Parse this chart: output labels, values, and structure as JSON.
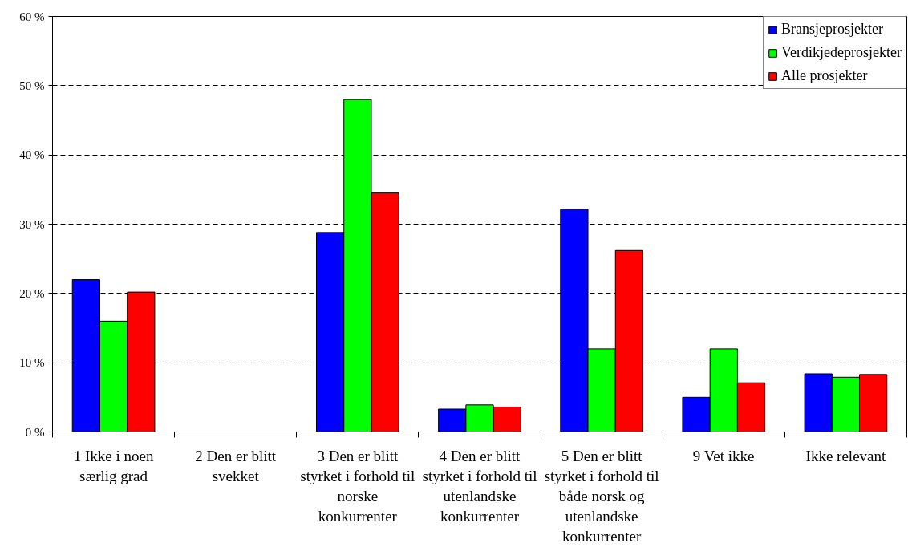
{
  "chart_data": {
    "type": "bar",
    "categories": [
      "1 Ikke i noen særlig grad",
      "2 Den er blitt svekket",
      "3 Den er blitt styrket i forhold til norske konkurrenter",
      "4 Den er blitt styrket i forhold til utenlandske konkurrenter",
      "5 Den er blitt styrket i forhold til både norsk og utenlandske konkurrenter",
      "9 Vet ikke",
      "Ikke relevant"
    ],
    "series": [
      {
        "name": "Bransjeprosjekter",
        "color": "#0000ff",
        "values": [
          22.0,
          null,
          28.8,
          3.3,
          32.2,
          5.0,
          8.4
        ]
      },
      {
        "name": "Verdikjedeprosjekter",
        "color": "#00ff00",
        "values": [
          16.0,
          null,
          48.0,
          3.9,
          12.0,
          12.0,
          7.9
        ]
      },
      {
        "name": "Alle prosjekter",
        "color": "#ff0000",
        "values": [
          20.2,
          null,
          34.5,
          3.6,
          26.2,
          7.1,
          8.3
        ]
      }
    ],
    "ylim": [
      0,
      60
    ],
    "yticks": [
      {
        "value": 0,
        "label": "0 %"
      },
      {
        "value": 10,
        "label": "10 %"
      },
      {
        "value": 20,
        "label": "20 %"
      },
      {
        "value": 30,
        "label": "30 %"
      },
      {
        "value": 40,
        "label": "40 %"
      },
      {
        "value": 50,
        "label": "50 %"
      },
      {
        "value": 60,
        "label": "60 %"
      }
    ],
    "grid": "y",
    "legend": "top right"
  }
}
